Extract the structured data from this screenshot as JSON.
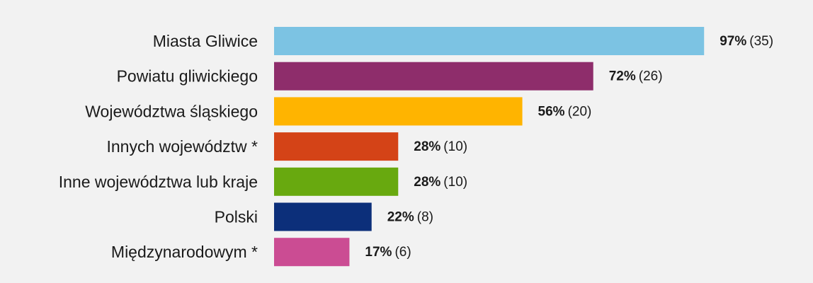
{
  "chart_data": {
    "type": "bar",
    "orientation": "horizontal",
    "title": "",
    "xlabel": "",
    "ylabel": "",
    "xlim": [
      0,
      100
    ],
    "grid": false,
    "legend": "none",
    "categories": [
      "Miasta Gliwice",
      "Powiatu gliwickiego",
      "Województwa śląskiego",
      "Innych województw *",
      "Inne województwa lub kraje",
      "Polski",
      "Międzynarodowym *"
    ],
    "values": [
      97,
      72,
      56,
      28,
      28,
      22,
      17
    ],
    "counts": [
      35,
      26,
      20,
      10,
      10,
      8,
      6
    ],
    "value_labels": [
      "97%",
      "72%",
      "56%",
      "28%",
      "28%",
      "22%",
      "17%"
    ],
    "count_labels": [
      "(35)",
      "(26)",
      "(20)",
      "(10)",
      "(10)",
      "(8)",
      "(6)"
    ],
    "colors": [
      "#7cc3e3",
      "#8e2d6b",
      "#ffb400",
      "#d44317",
      "#68a90f",
      "#0c2f7a",
      "#cb4c93"
    ],
    "background": "#f2f2f2"
  }
}
